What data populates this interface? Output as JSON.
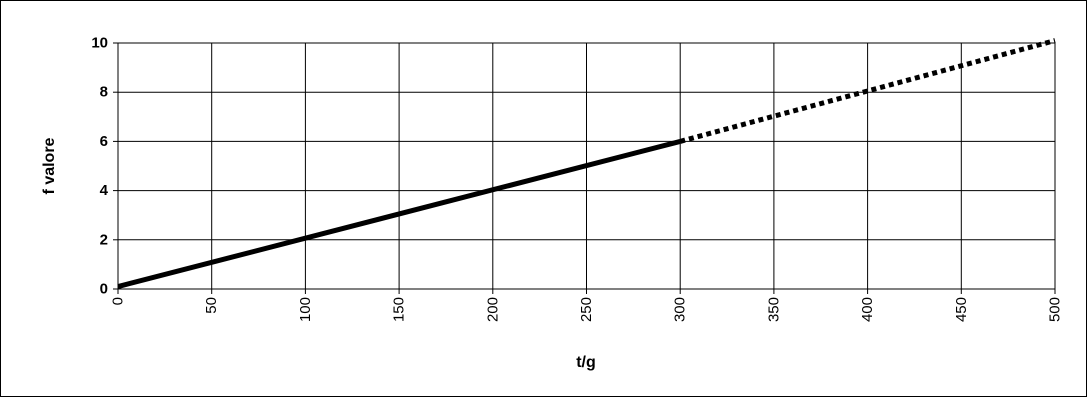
{
  "chart_data": {
    "type": "line",
    "title": "",
    "xlabel": "t/g",
    "ylabel": "f valore",
    "xlim": [
      0,
      500
    ],
    "ylim": [
      0,
      10
    ],
    "x_ticks": [
      "0",
      "50",
      "100",
      "150",
      "200",
      "250",
      "300",
      "350",
      "400",
      "450",
      "500"
    ],
    "y_ticks": [
      "0",
      "2",
      "4",
      "6",
      "8",
      "10"
    ],
    "grid": true,
    "legend": "none",
    "series": [
      {
        "style": "solid",
        "color": "#000000",
        "x": [
          0,
          300
        ],
        "y": [
          0.1,
          6.0
        ]
      },
      {
        "style": "dotted",
        "color": "#000000",
        "x": [
          300,
          500
        ],
        "y": [
          6.0,
          10.1
        ]
      }
    ]
  }
}
